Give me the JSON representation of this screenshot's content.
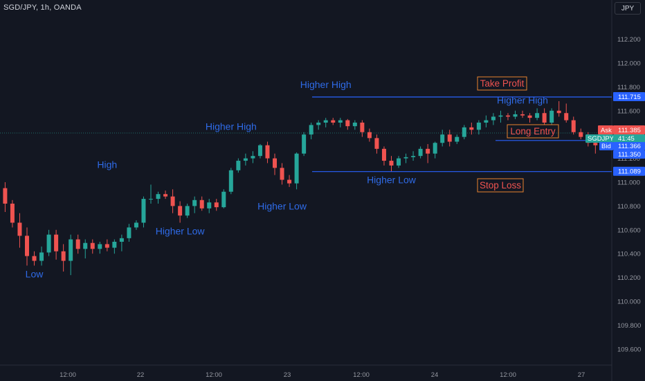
{
  "header": {
    "symbol_title": "SGD/JPY, 1h, OANDA"
  },
  "axis_badge": {
    "currency": "JPY"
  },
  "colors": {
    "background": "#131722",
    "up": "#26a69a",
    "down": "#ef5350",
    "annotation_text": "#2f6be8",
    "level_line": "#2962ff",
    "label_border": "#e8832f",
    "label_text": "#ef5350",
    "axis_text": "#9598a1"
  },
  "chart_data": {
    "type": "candlestick",
    "title": "SGD/JPY, 1h, OANDA",
    "ylim": [
      109.5,
      112.5
    ],
    "y_ticks": [
      "112.200",
      "112.000",
      "111.800",
      "111.600",
      "111.200",
      "111.000",
      "110.800",
      "110.600",
      "110.400",
      "110.200",
      "110.000",
      "109.800",
      "109.600"
    ],
    "x_ticks": [
      "12:00",
      "22",
      "12:00",
      "23",
      "12:00",
      "24",
      "12:00",
      "27"
    ],
    "candles": [
      {
        "o": 110.95,
        "h": 111.0,
        "l": 110.75,
        "c": 110.82
      },
      {
        "o": 110.82,
        "h": 110.85,
        "l": 110.62,
        "c": 110.66
      },
      {
        "o": 110.66,
        "h": 110.74,
        "l": 110.45,
        "c": 110.55
      },
      {
        "o": 110.55,
        "h": 110.62,
        "l": 110.3,
        "c": 110.38
      },
      {
        "o": 110.38,
        "h": 110.42,
        "l": 110.3,
        "c": 110.34
      },
      {
        "o": 110.34,
        "h": 110.46,
        "l": 110.3,
        "c": 110.41
      },
      {
        "o": 110.41,
        "h": 110.6,
        "l": 110.38,
        "c": 110.56
      },
      {
        "o": 110.56,
        "h": 110.6,
        "l": 110.35,
        "c": 110.42
      },
      {
        "o": 110.42,
        "h": 110.48,
        "l": 110.25,
        "c": 110.34
      },
      {
        "o": 110.34,
        "h": 110.56,
        "l": 110.22,
        "c": 110.52
      },
      {
        "o": 110.52,
        "h": 110.56,
        "l": 110.4,
        "c": 110.44
      },
      {
        "o": 110.44,
        "h": 110.52,
        "l": 110.36,
        "c": 110.49
      },
      {
        "o": 110.49,
        "h": 110.52,
        "l": 110.4,
        "c": 110.44
      },
      {
        "o": 110.44,
        "h": 110.5,
        "l": 110.4,
        "c": 110.48
      },
      {
        "o": 110.48,
        "h": 110.52,
        "l": 110.42,
        "c": 110.45
      },
      {
        "o": 110.45,
        "h": 110.52,
        "l": 110.4,
        "c": 110.5
      },
      {
        "o": 110.5,
        "h": 110.56,
        "l": 110.42,
        "c": 110.53
      },
      {
        "o": 110.53,
        "h": 110.65,
        "l": 110.5,
        "c": 110.62
      },
      {
        "o": 110.62,
        "h": 110.68,
        "l": 110.6,
        "c": 110.66
      },
      {
        "o": 110.66,
        "h": 110.88,
        "l": 110.62,
        "c": 110.86
      },
      {
        "o": 110.86,
        "h": 110.98,
        "l": 110.82,
        "c": 110.86
      },
      {
        "o": 110.86,
        "h": 110.92,
        "l": 110.82,
        "c": 110.9
      },
      {
        "o": 110.9,
        "h": 110.93,
        "l": 110.86,
        "c": 110.88
      },
      {
        "o": 110.88,
        "h": 110.94,
        "l": 110.74,
        "c": 110.8
      },
      {
        "o": 110.8,
        "h": 110.84,
        "l": 110.66,
        "c": 110.72
      },
      {
        "o": 110.72,
        "h": 110.82,
        "l": 110.7,
        "c": 110.8
      },
      {
        "o": 110.8,
        "h": 110.88,
        "l": 110.74,
        "c": 110.85
      },
      {
        "o": 110.85,
        "h": 110.88,
        "l": 110.76,
        "c": 110.78
      },
      {
        "o": 110.78,
        "h": 110.86,
        "l": 110.74,
        "c": 110.83
      },
      {
        "o": 110.83,
        "h": 110.86,
        "l": 110.76,
        "c": 110.79
      },
      {
        "o": 110.79,
        "h": 110.94,
        "l": 110.78,
        "c": 110.92
      },
      {
        "o": 110.92,
        "h": 111.12,
        "l": 110.9,
        "c": 111.1
      },
      {
        "o": 111.1,
        "h": 111.2,
        "l": 111.08,
        "c": 111.18
      },
      {
        "o": 111.18,
        "h": 111.24,
        "l": 111.14,
        "c": 111.2
      },
      {
        "o": 111.2,
        "h": 111.26,
        "l": 111.16,
        "c": 111.22
      },
      {
        "o": 111.22,
        "h": 111.32,
        "l": 111.2,
        "c": 111.31
      },
      {
        "o": 111.31,
        "h": 111.34,
        "l": 111.16,
        "c": 111.2
      },
      {
        "o": 111.2,
        "h": 111.24,
        "l": 111.06,
        "c": 111.12
      },
      {
        "o": 111.12,
        "h": 111.16,
        "l": 110.98,
        "c": 111.02
      },
      {
        "o": 111.02,
        "h": 111.06,
        "l": 110.96,
        "c": 110.99
      },
      {
        "o": 110.99,
        "h": 111.25,
        "l": 110.94,
        "c": 111.24
      },
      {
        "o": 111.24,
        "h": 111.42,
        "l": 111.22,
        "c": 111.4
      },
      {
        "o": 111.4,
        "h": 111.5,
        "l": 111.36,
        "c": 111.48
      },
      {
        "o": 111.48,
        "h": 111.52,
        "l": 111.44,
        "c": 111.5
      },
      {
        "o": 111.5,
        "h": 111.54,
        "l": 111.46,
        "c": 111.52
      },
      {
        "o": 111.52,
        "h": 111.54,
        "l": 111.48,
        "c": 111.5
      },
      {
        "o": 111.5,
        "h": 111.54,
        "l": 111.46,
        "c": 111.52
      },
      {
        "o": 111.52,
        "h": 111.53,
        "l": 111.44,
        "c": 111.47
      },
      {
        "o": 111.47,
        "h": 111.52,
        "l": 111.44,
        "c": 111.5
      },
      {
        "o": 111.5,
        "h": 111.52,
        "l": 111.38,
        "c": 111.42
      },
      {
        "o": 111.42,
        "h": 111.45,
        "l": 111.34,
        "c": 111.37
      },
      {
        "o": 111.37,
        "h": 111.4,
        "l": 111.24,
        "c": 111.28
      },
      {
        "o": 111.28,
        "h": 111.3,
        "l": 111.14,
        "c": 111.18
      },
      {
        "o": 111.18,
        "h": 111.22,
        "l": 111.09,
        "c": 111.14
      },
      {
        "o": 111.14,
        "h": 111.22,
        "l": 111.12,
        "c": 111.2
      },
      {
        "o": 111.2,
        "h": 111.24,
        "l": 111.16,
        "c": 111.21
      },
      {
        "o": 111.21,
        "h": 111.26,
        "l": 111.18,
        "c": 111.22
      },
      {
        "o": 111.22,
        "h": 111.3,
        "l": 111.2,
        "c": 111.28
      },
      {
        "o": 111.28,
        "h": 111.32,
        "l": 111.16,
        "c": 111.24
      },
      {
        "o": 111.24,
        "h": 111.34,
        "l": 111.2,
        "c": 111.33
      },
      {
        "o": 111.33,
        "h": 111.44,
        "l": 111.3,
        "c": 111.4
      },
      {
        "o": 111.4,
        "h": 111.44,
        "l": 111.3,
        "c": 111.34
      },
      {
        "o": 111.34,
        "h": 111.4,
        "l": 111.32,
        "c": 111.38
      },
      {
        "o": 111.38,
        "h": 111.48,
        "l": 111.36,
        "c": 111.46
      },
      {
        "o": 111.46,
        "h": 111.5,
        "l": 111.4,
        "c": 111.44
      },
      {
        "o": 111.44,
        "h": 111.52,
        "l": 111.4,
        "c": 111.5
      },
      {
        "o": 111.5,
        "h": 111.56,
        "l": 111.46,
        "c": 111.52
      },
      {
        "o": 111.52,
        "h": 111.58,
        "l": 111.48,
        "c": 111.55
      },
      {
        "o": 111.55,
        "h": 111.6,
        "l": 111.5,
        "c": 111.56
      },
      {
        "o": 111.56,
        "h": 111.58,
        "l": 111.52,
        "c": 111.55
      },
      {
        "o": 111.55,
        "h": 111.6,
        "l": 111.53,
        "c": 111.57
      },
      {
        "o": 111.57,
        "h": 111.6,
        "l": 111.54,
        "c": 111.56
      },
      {
        "o": 111.56,
        "h": 111.58,
        "l": 111.5,
        "c": 111.54
      },
      {
        "o": 111.54,
        "h": 111.62,
        "l": 111.52,
        "c": 111.58
      },
      {
        "o": 111.58,
        "h": 111.62,
        "l": 111.48,
        "c": 111.5
      },
      {
        "o": 111.5,
        "h": 111.62,
        "l": 111.48,
        "c": 111.6
      },
      {
        "o": 111.6,
        "h": 111.68,
        "l": 111.55,
        "c": 111.58
      },
      {
        "o": 111.58,
        "h": 111.66,
        "l": 111.5,
        "c": 111.52
      },
      {
        "o": 111.52,
        "h": 111.55,
        "l": 111.4,
        "c": 111.42
      },
      {
        "o": 111.42,
        "h": 111.45,
        "l": 111.36,
        "c": 111.38
      },
      {
        "o": 111.38,
        "h": 111.42,
        "l": 111.3,
        "c": 111.33
      },
      {
        "o": 111.33,
        "h": 111.36,
        "l": 111.24,
        "c": 111.31
      },
      {
        "o": 111.31,
        "h": 111.35,
        "l": 111.27,
        "c": 111.33
      },
      {
        "o": 111.33,
        "h": 111.36,
        "l": 111.3,
        "c": 111.35
      }
    ],
    "annotations": [
      {
        "text": "Low",
        "index": 4,
        "price": 110.2
      },
      {
        "text": "High",
        "index": 14,
        "price": 111.12
      },
      {
        "text": "Higher Low",
        "index": 24,
        "price": 110.56
      },
      {
        "text": "Higher High",
        "index": 31,
        "price": 111.44
      },
      {
        "text": "Higher Low",
        "index": 38,
        "price": 110.77
      },
      {
        "text": "Higher High",
        "index": 44,
        "price": 111.79
      },
      {
        "text": "Higher Low",
        "index": 53,
        "price": 110.99
      },
      {
        "text": "Higher High",
        "index": 71,
        "price": 111.66
      }
    ],
    "levels": [
      {
        "name": "Take Profit",
        "price": 111.715,
        "label": "Take Profit"
      },
      {
        "name": "Long Entry",
        "price": 111.35,
        "label": "Long Entry"
      },
      {
        "name": "Stop Loss",
        "price": 111.089,
        "label": "Stop Loss"
      }
    ],
    "price_tags": {
      "take_profit": "111.715",
      "ask_label": "Ask",
      "ask_value": "111.385",
      "symbol": "SGDJPY",
      "countdown": "41:45",
      "bid_label": "Bid",
      "bid_value": "111.366",
      "entry": "111.350",
      "stop_loss": "111.089"
    },
    "grid": false,
    "last_price": 111.366
  }
}
